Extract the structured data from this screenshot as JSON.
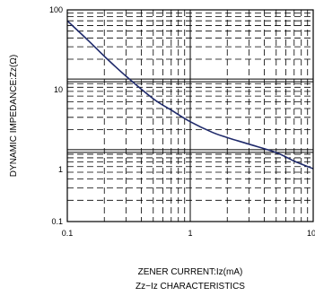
{
  "chart_data": {
    "type": "line",
    "x_scale": "log",
    "y_scale": "log",
    "xlim": [
      0.1,
      10
    ],
    "ylim": [
      0.1,
      100
    ],
    "xlabel": "ZENER CURRENT:Iz(mA)",
    "ylabel": "DYNAMIC IMPEDANCE:Zz(Ω)",
    "subtitle": "Zz−Iz CHARACTERISTICS",
    "x_tick_labels": [
      "0.1",
      "1",
      "10"
    ],
    "y_tick_labels": [
      "0.1",
      "1",
      "10",
      "100"
    ],
    "grid": true,
    "series": [
      {
        "color": "#1f2a6b",
        "x": [
          0.1,
          0.15,
          0.2,
          0.3,
          0.5,
          0.7,
          1.0,
          1.5,
          2.0,
          3.0,
          5.0,
          7.0,
          10.0
        ],
        "y": [
          70,
          36,
          22,
          11.5,
          5.5,
          3.8,
          2.6,
          1.85,
          1.55,
          1.25,
          0.95,
          0.72,
          0.56
        ]
      }
    ]
  }
}
